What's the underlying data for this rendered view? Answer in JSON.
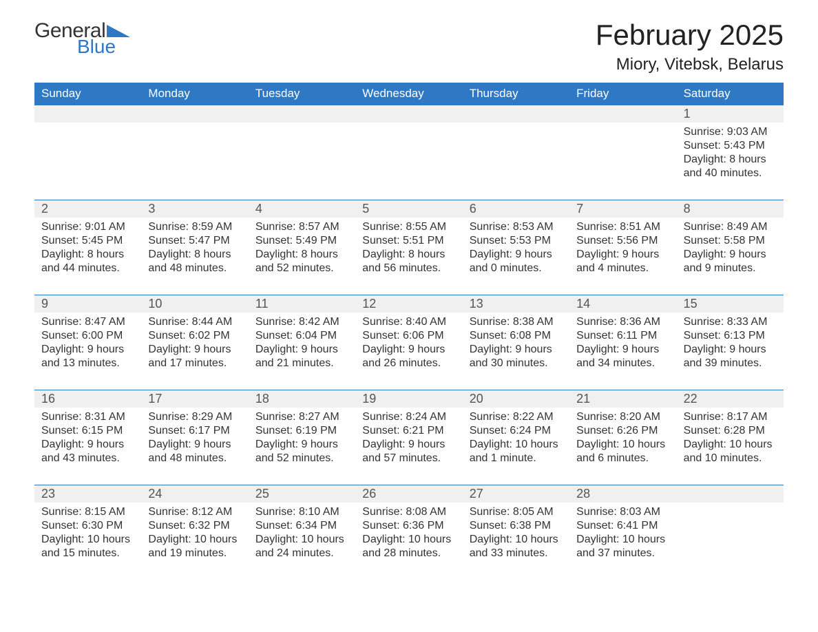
{
  "logo": {
    "text_general": "General",
    "text_blue": "Blue",
    "accent_color": "#2f78c4"
  },
  "header": {
    "month_title": "February 2025",
    "location": "Miory, Vitebsk, Belarus"
  },
  "calendar": {
    "header_bg": "#2f78c4",
    "header_fg": "#ffffff",
    "row_stripe": "#f0f0f0",
    "rule_color": "#2f78c4",
    "days_of_week": [
      "Sunday",
      "Monday",
      "Tuesday",
      "Wednesday",
      "Thursday",
      "Friday",
      "Saturday"
    ],
    "weeks": [
      [
        null,
        null,
        null,
        null,
        null,
        null,
        {
          "n": "1",
          "sunrise": "Sunrise: 9:03 AM",
          "sunset": "Sunset: 5:43 PM",
          "daylight": "Daylight: 8 hours and 40 minutes."
        }
      ],
      [
        {
          "n": "2",
          "sunrise": "Sunrise: 9:01 AM",
          "sunset": "Sunset: 5:45 PM",
          "daylight": "Daylight: 8 hours and 44 minutes."
        },
        {
          "n": "3",
          "sunrise": "Sunrise: 8:59 AM",
          "sunset": "Sunset: 5:47 PM",
          "daylight": "Daylight: 8 hours and 48 minutes."
        },
        {
          "n": "4",
          "sunrise": "Sunrise: 8:57 AM",
          "sunset": "Sunset: 5:49 PM",
          "daylight": "Daylight: 8 hours and 52 minutes."
        },
        {
          "n": "5",
          "sunrise": "Sunrise: 8:55 AM",
          "sunset": "Sunset: 5:51 PM",
          "daylight": "Daylight: 8 hours and 56 minutes."
        },
        {
          "n": "6",
          "sunrise": "Sunrise: 8:53 AM",
          "sunset": "Sunset: 5:53 PM",
          "daylight": "Daylight: 9 hours and 0 minutes."
        },
        {
          "n": "7",
          "sunrise": "Sunrise: 8:51 AM",
          "sunset": "Sunset: 5:56 PM",
          "daylight": "Daylight: 9 hours and 4 minutes."
        },
        {
          "n": "8",
          "sunrise": "Sunrise: 8:49 AM",
          "sunset": "Sunset: 5:58 PM",
          "daylight": "Daylight: 9 hours and 9 minutes."
        }
      ],
      [
        {
          "n": "9",
          "sunrise": "Sunrise: 8:47 AM",
          "sunset": "Sunset: 6:00 PM",
          "daylight": "Daylight: 9 hours and 13 minutes."
        },
        {
          "n": "10",
          "sunrise": "Sunrise: 8:44 AM",
          "sunset": "Sunset: 6:02 PM",
          "daylight": "Daylight: 9 hours and 17 minutes."
        },
        {
          "n": "11",
          "sunrise": "Sunrise: 8:42 AM",
          "sunset": "Sunset: 6:04 PM",
          "daylight": "Daylight: 9 hours and 21 minutes."
        },
        {
          "n": "12",
          "sunrise": "Sunrise: 8:40 AM",
          "sunset": "Sunset: 6:06 PM",
          "daylight": "Daylight: 9 hours and 26 minutes."
        },
        {
          "n": "13",
          "sunrise": "Sunrise: 8:38 AM",
          "sunset": "Sunset: 6:08 PM",
          "daylight": "Daylight: 9 hours and 30 minutes."
        },
        {
          "n": "14",
          "sunrise": "Sunrise: 8:36 AM",
          "sunset": "Sunset: 6:11 PM",
          "daylight": "Daylight: 9 hours and 34 minutes."
        },
        {
          "n": "15",
          "sunrise": "Sunrise: 8:33 AM",
          "sunset": "Sunset: 6:13 PM",
          "daylight": "Daylight: 9 hours and 39 minutes."
        }
      ],
      [
        {
          "n": "16",
          "sunrise": "Sunrise: 8:31 AM",
          "sunset": "Sunset: 6:15 PM",
          "daylight": "Daylight: 9 hours and 43 minutes."
        },
        {
          "n": "17",
          "sunrise": "Sunrise: 8:29 AM",
          "sunset": "Sunset: 6:17 PM",
          "daylight": "Daylight: 9 hours and 48 minutes."
        },
        {
          "n": "18",
          "sunrise": "Sunrise: 8:27 AM",
          "sunset": "Sunset: 6:19 PM",
          "daylight": "Daylight: 9 hours and 52 minutes."
        },
        {
          "n": "19",
          "sunrise": "Sunrise: 8:24 AM",
          "sunset": "Sunset: 6:21 PM",
          "daylight": "Daylight: 9 hours and 57 minutes."
        },
        {
          "n": "20",
          "sunrise": "Sunrise: 8:22 AM",
          "sunset": "Sunset: 6:24 PM",
          "daylight": "Daylight: 10 hours and 1 minute."
        },
        {
          "n": "21",
          "sunrise": "Sunrise: 8:20 AM",
          "sunset": "Sunset: 6:26 PM",
          "daylight": "Daylight: 10 hours and 6 minutes."
        },
        {
          "n": "22",
          "sunrise": "Sunrise: 8:17 AM",
          "sunset": "Sunset: 6:28 PM",
          "daylight": "Daylight: 10 hours and 10 minutes."
        }
      ],
      [
        {
          "n": "23",
          "sunrise": "Sunrise: 8:15 AM",
          "sunset": "Sunset: 6:30 PM",
          "daylight": "Daylight: 10 hours and 15 minutes."
        },
        {
          "n": "24",
          "sunrise": "Sunrise: 8:12 AM",
          "sunset": "Sunset: 6:32 PM",
          "daylight": "Daylight: 10 hours and 19 minutes."
        },
        {
          "n": "25",
          "sunrise": "Sunrise: 8:10 AM",
          "sunset": "Sunset: 6:34 PM",
          "daylight": "Daylight: 10 hours and 24 minutes."
        },
        {
          "n": "26",
          "sunrise": "Sunrise: 8:08 AM",
          "sunset": "Sunset: 6:36 PM",
          "daylight": "Daylight: 10 hours and 28 minutes."
        },
        {
          "n": "27",
          "sunrise": "Sunrise: 8:05 AM",
          "sunset": "Sunset: 6:38 PM",
          "daylight": "Daylight: 10 hours and 33 minutes."
        },
        {
          "n": "28",
          "sunrise": "Sunrise: 8:03 AM",
          "sunset": "Sunset: 6:41 PM",
          "daylight": "Daylight: 10 hours and 37 minutes."
        },
        null
      ]
    ]
  }
}
